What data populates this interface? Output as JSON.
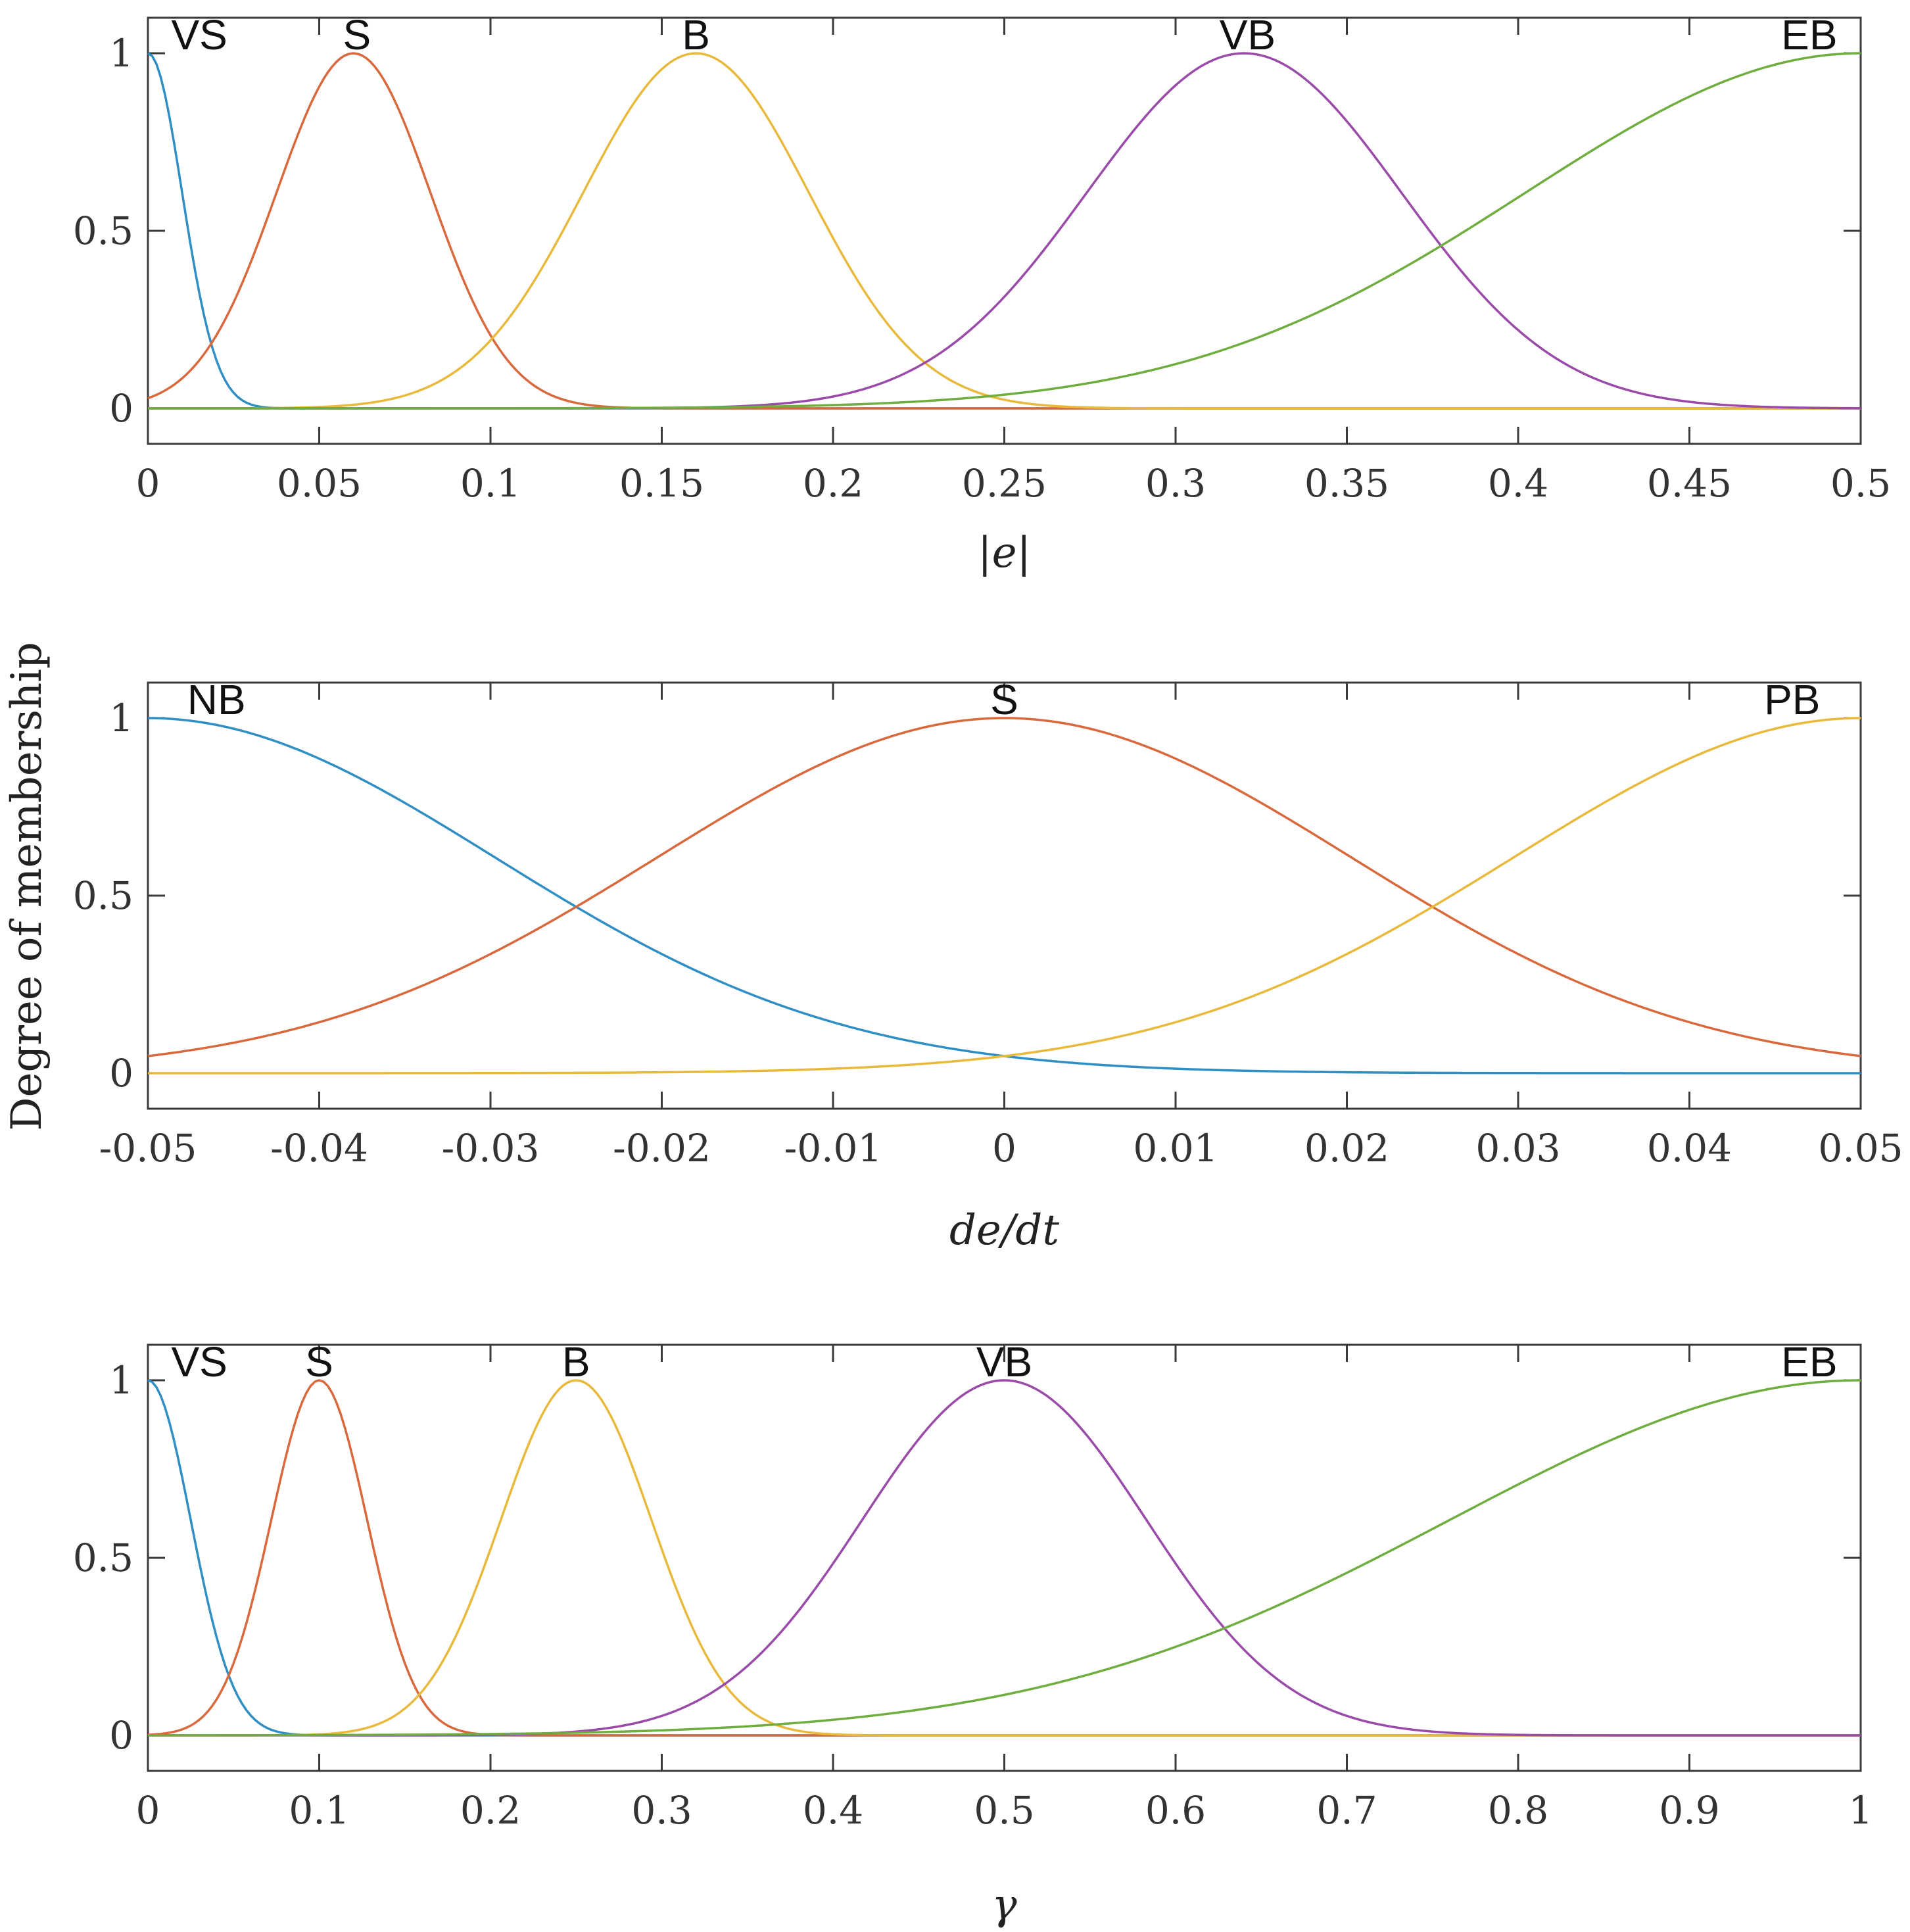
{
  "ylabel": "Degree of membership",
  "chart_data": [
    {
      "type": "line",
      "title": "",
      "xlabel": "|e|",
      "ylabel": "Degree of membership",
      "xlim": [
        0,
        0.5
      ],
      "ylim": [
        -0.1,
        1.1
      ],
      "x_ticks": [
        "0",
        "0.05",
        "0.1",
        "0.15",
        "0.2",
        "0.25",
        "0.3",
        "0.35",
        "0.4",
        "0.45",
        "0.5"
      ],
      "x_tick_values": [
        0,
        0.05,
        0.1,
        0.15,
        0.2,
        0.25,
        0.3,
        0.35,
        0.4,
        0.45,
        0.5
      ],
      "y_ticks": [
        "0",
        "0.5",
        "1"
      ],
      "y_tick_values": [
        0,
        0.5,
        1
      ],
      "series": [
        {
          "name": "VS",
          "shape": "gaussmf",
          "center": 0,
          "sigma": 0.01,
          "color": "#2f8fc4",
          "label_x": 0.015
        },
        {
          "name": "S",
          "shape": "gaussmf",
          "center": 0.06,
          "sigma": 0.0225,
          "color": "#d9693c",
          "label_x": 0.061
        },
        {
          "name": "B",
          "shape": "gaussmf",
          "center": 0.16,
          "sigma": 0.033,
          "color": "#e8b93a",
          "label_x": 0.16
        },
        {
          "name": "VB",
          "shape": "gaussmf",
          "center": 0.32,
          "sigma": 0.046,
          "color": "#9a4aa8",
          "label_x": 0.321
        },
        {
          "name": "EB",
          "shape": "gaussmf",
          "center": 0.5,
          "sigma": 0.098,
          "color": "#6fad3f",
          "label_x": 0.485
        }
      ]
    },
    {
      "type": "line",
      "title": "",
      "xlabel": "de/dt",
      "ylabel": "Degree of membership",
      "xlim": [
        -0.05,
        0.05
      ],
      "ylim": [
        -0.1,
        1.1
      ],
      "x_ticks": [
        "-0.05",
        "-0.04",
        "-0.03",
        "-0.02",
        "-0.01",
        "0",
        "0.01",
        "0.02",
        "0.03",
        "0.04",
        "0.05"
      ],
      "x_tick_values": [
        -0.05,
        -0.04,
        -0.03,
        -0.02,
        -0.01,
        0,
        0.01,
        0.02,
        0.03,
        0.04,
        0.05
      ],
      "y_ticks": [
        "0",
        "0.5",
        "1"
      ],
      "y_tick_values": [
        0,
        0.5,
        1
      ],
      "series": [
        {
          "name": "NB",
          "shape": "gaussmf",
          "center": -0.05,
          "sigma": 0.0203,
          "color": "#2f8fc4",
          "label_x": -0.046
        },
        {
          "name": "S",
          "shape": "gaussmf",
          "center": 0,
          "sigma": 0.0203,
          "color": "#d9693c",
          "label_x": 0
        },
        {
          "name": "PB",
          "shape": "gaussmf",
          "center": 0.05,
          "sigma": 0.0203,
          "color": "#e8b93a",
          "label_x": 0.046
        }
      ]
    },
    {
      "type": "line",
      "title": "",
      "xlabel": "γ",
      "ylabel": "Degree of membership",
      "xlim": [
        0,
        1
      ],
      "ylim": [
        -0.1,
        1.1
      ],
      "x_ticks": [
        "0",
        "0.1",
        "0.2",
        "0.3",
        "0.4",
        "0.5",
        "0.6",
        "0.7",
        "0.8",
        "0.9",
        "1"
      ],
      "x_tick_values": [
        0,
        0.1,
        0.2,
        0.3,
        0.4,
        0.5,
        0.6,
        0.7,
        0.8,
        0.9,
        1
      ],
      "y_ticks": [
        "0",
        "0.5",
        "1"
      ],
      "y_tick_values": [
        0,
        0.5,
        1
      ],
      "series": [
        {
          "name": "VS",
          "shape": "gaussmf",
          "center": 0,
          "sigma": 0.025,
          "color": "#2f8fc4",
          "label_x": 0.03
        },
        {
          "name": "S",
          "shape": "gaussmf",
          "center": 0.1,
          "sigma": 0.028,
          "color": "#d9693c",
          "label_x": 0.1
        },
        {
          "name": "B",
          "shape": "gaussmf",
          "center": 0.25,
          "sigma": 0.044,
          "color": "#e8b93a",
          "label_x": 0.25
        },
        {
          "name": "VB",
          "shape": "gaussmf",
          "center": 0.5,
          "sigma": 0.083,
          "color": "#9a4aa8",
          "label_x": 0.5
        },
        {
          "name": "EB",
          "shape": "gaussmf",
          "center": 1,
          "sigma": 0.24,
          "color": "#6fad3f",
          "label_x": 0.97
        }
      ]
    }
  ]
}
